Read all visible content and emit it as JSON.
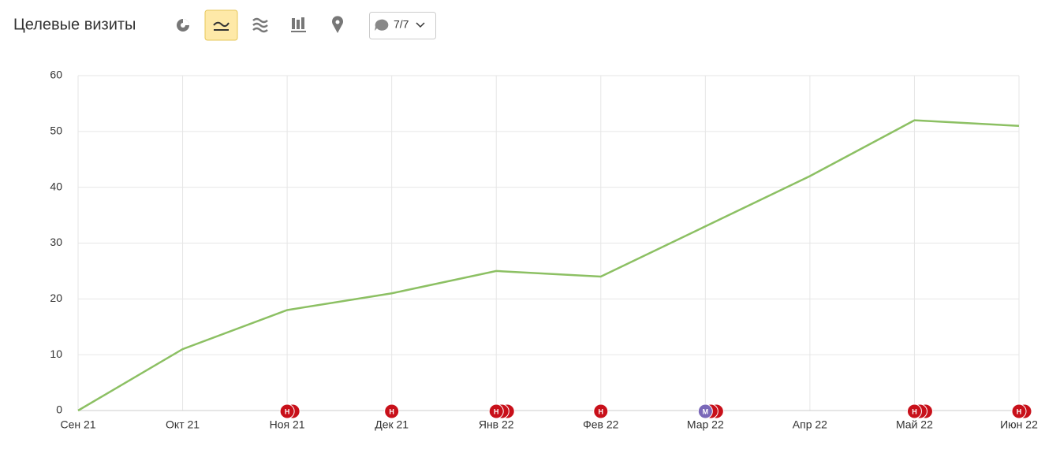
{
  "header": {
    "title": "Целевые визиты",
    "counter": "7/7"
  },
  "chart_data": {
    "type": "line",
    "categories": [
      "Сен 21",
      "Окт 21",
      "Ноя 21",
      "Дек 21",
      "Янв 22",
      "Фев 22",
      "Мар 22",
      "Апр 22",
      "Май 22",
      "Июн 22"
    ],
    "values": [
      0,
      11,
      18,
      21,
      25,
      24,
      33,
      42,
      52,
      51
    ],
    "color": "#8cc063",
    "ylim": [
      0,
      60
    ],
    "yticks": [
      0,
      10,
      20,
      30,
      40,
      50,
      60
    ],
    "grid": true,
    "annotations": [
      null,
      null,
      {
        "label": "Н",
        "colors": [
          "#c8101a",
          "#c8101a"
        ]
      },
      {
        "label": "Н",
        "colors": [
          "#c8101a"
        ]
      },
      {
        "label": "Н",
        "colors": [
          "#c8101a",
          "#c8101a",
          "#c8101a"
        ]
      },
      {
        "label": "Н",
        "colors": [
          "#c8101a"
        ]
      },
      {
        "label": "М",
        "colors": [
          "#7a68b8",
          "#c8101a",
          "#c8101a"
        ]
      },
      null,
      {
        "label": "Н",
        "colors": [
          "#c8101a",
          "#c8101a",
          "#c8101a"
        ]
      },
      {
        "label": "Н",
        "colors": [
          "#c8101a",
          "#c8101a"
        ]
      }
    ]
  }
}
